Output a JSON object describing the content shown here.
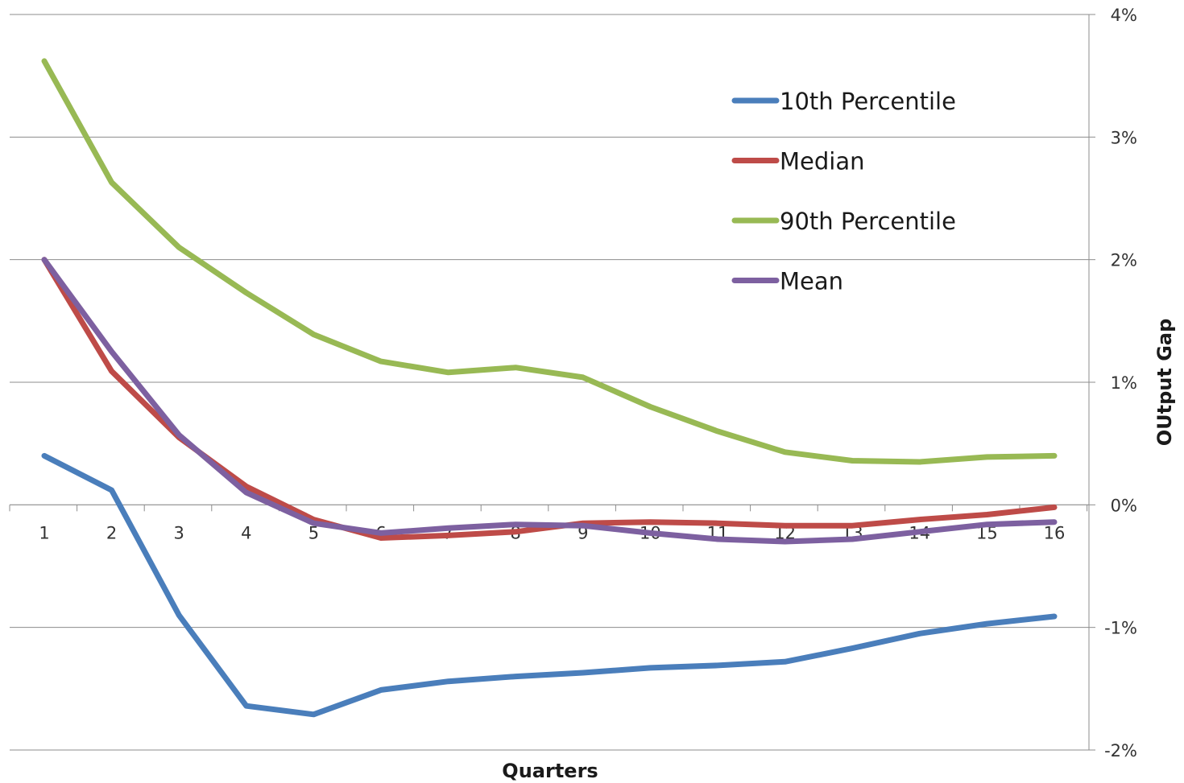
{
  "chart_data": {
    "type": "line",
    "xlabel": "Quarters",
    "ylabel": "OUtput Gap",
    "x_categories": [
      "1",
      "2",
      "3",
      "4",
      "5",
      "6",
      "7",
      "8",
      "9",
      "10",
      "11",
      "12",
      "13",
      "14",
      "15",
      "16"
    ],
    "ylim": [
      -2,
      4
    ],
    "y_ticks": [
      -2,
      -1,
      0,
      1,
      2,
      3,
      4
    ],
    "y_tick_labels": [
      "-2%",
      "-1%",
      "0%",
      "1%",
      "2%",
      "3%",
      "4%"
    ],
    "y_axis_side": "right",
    "grid": "horizontal",
    "legend_position": "top-right",
    "series": [
      {
        "name": "10th Percentile",
        "color": "#4a7ebb",
        "values": [
          0.4,
          0.12,
          -0.9,
          -1.64,
          -1.71,
          -1.51,
          -1.44,
          -1.4,
          -1.37,
          -1.33,
          -1.31,
          -1.28,
          -1.17,
          -1.05,
          -0.97,
          -0.91
        ]
      },
      {
        "name": "Median",
        "color": "#be4b48",
        "values": [
          2.0,
          1.09,
          0.55,
          0.15,
          -0.12,
          -0.27,
          -0.25,
          -0.22,
          -0.15,
          -0.14,
          -0.15,
          -0.17,
          -0.17,
          -0.12,
          -0.08,
          -0.02
        ]
      },
      {
        "name": "90th Percentile",
        "color": "#98b954",
        "values": [
          3.62,
          2.63,
          2.1,
          1.73,
          1.39,
          1.17,
          1.08,
          1.12,
          1.04,
          0.8,
          0.6,
          0.43,
          0.36,
          0.35,
          0.39,
          0.4
        ]
      },
      {
        "name": "Mean",
        "color": "#7d60a0",
        "values": [
          2.0,
          1.25,
          0.57,
          0.1,
          -0.15,
          -0.23,
          -0.19,
          -0.16,
          -0.17,
          -0.23,
          -0.28,
          -0.3,
          -0.28,
          -0.22,
          -0.16,
          -0.14
        ]
      }
    ]
  }
}
